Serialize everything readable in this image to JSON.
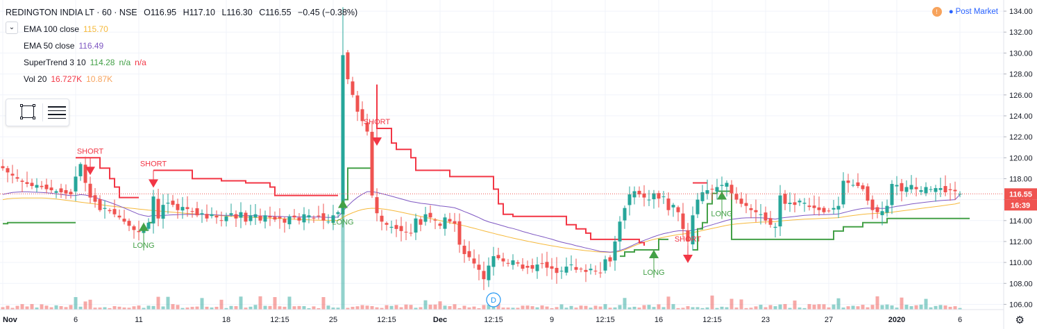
{
  "header": {
    "symbol": "REDINGTON INDIA LT · 60 · NSE",
    "open": "O116.95",
    "high": "H117.10",
    "low": "L116.30",
    "close": "C116.55",
    "change": "−0.45 (−0.38%)"
  },
  "indicators": [
    {
      "label": "EMA 100 close",
      "values": [
        "115.70"
      ],
      "colors": [
        "#f6b93b"
      ]
    },
    {
      "label": "EMA 50 close",
      "values": [
        "116.49"
      ],
      "colors": [
        "#7e57c2"
      ]
    },
    {
      "label": "SuperTrend 3 10",
      "values": [
        "114.28",
        "n/a",
        "n/a"
      ],
      "colors": [
        "#43a047",
        "#43a047",
        "#f23645"
      ]
    },
    {
      "label": "Vol 20",
      "values": [
        "16.727K",
        "10.87K"
      ],
      "colors": [
        "#f23645",
        "#f7a35c"
      ]
    }
  ],
  "status": {
    "icon": "!",
    "label": "Post Market"
  },
  "colors": {
    "up": "#26a69a",
    "down": "#ef5350",
    "st_up": "#43a047",
    "st_down": "#f23645",
    "ema100": "#f6b93b",
    "ema50": "#7e57c2",
    "last_price": "#ef5350"
  },
  "chart_data": {
    "type": "candlestick",
    "y_range": [
      105.5,
      134.8
    ],
    "y_ticks": [
      "134.00",
      "132.00",
      "130.00",
      "128.00",
      "126.00",
      "124.00",
      "122.00",
      "120.00",
      "118.00",
      "116.00",
      "114.00",
      "112.00",
      "110.00",
      "108.00",
      "106.00"
    ],
    "last_price": "116.55",
    "time_to_close": "16:39",
    "x_labels": [
      {
        "i": 0,
        "label": "Nov"
      },
      {
        "i": 15,
        "label": "6"
      },
      {
        "i": 28,
        "label": "11"
      },
      {
        "i": 46,
        "label": "18"
      },
      {
        "i": 57,
        "label": "12:15"
      },
      {
        "i": 68,
        "label": "25"
      },
      {
        "i": 79,
        "label": "12:15"
      },
      {
        "i": 90,
        "label": "Dec"
      },
      {
        "i": 101,
        "label": "12:15"
      },
      {
        "i": 113,
        "label": "9"
      },
      {
        "i": 124,
        "label": "12:15"
      },
      {
        "i": 135,
        "label": "16"
      },
      {
        "i": 146,
        "label": "12:15"
      },
      {
        "i": 157,
        "label": "23"
      },
      {
        "i": 170,
        "label": "27"
      },
      {
        "i": 184,
        "label": "2020"
      },
      {
        "i": 197,
        "label": "6"
      }
    ],
    "closes": [
      119.0,
      118.6,
      118.3,
      118.0,
      117.7,
      117.5,
      117.3,
      117.4,
      117.2,
      117.0,
      116.9,
      116.8,
      116.7,
      116.6,
      116.5,
      118.2,
      119.4,
      117.6,
      116.2,
      115.8,
      115.0,
      115.2,
      114.9,
      114.6,
      114.3,
      113.9,
      113.5,
      113.1,
      112.9,
      113.4,
      113.8,
      116.3,
      114.2,
      115.5,
      115.7,
      115.5,
      115.0,
      115.3,
      115.1,
      114.9,
      114.5,
      114.7,
      114.2,
      114.6,
      114.3,
      114.0,
      114.4,
      114.7,
      114.2,
      114.8,
      113.9,
      114.5,
      114.6,
      114.0,
      114.5,
      114.3,
      114.1,
      114.2,
      113.8,
      114.4,
      114.3,
      114.0,
      114.6,
      114.5,
      114.2,
      114.4,
      114.0,
      113.9,
      114.5,
      114.8,
      129.8,
      127.5,
      126.0,
      124.4,
      123.5,
      122.5,
      116.4,
      114.7,
      113.9,
      113.6,
      113.4,
      113.2,
      113.0,
      112.9,
      112.8,
      114.2,
      113.6,
      114.6,
      114.3,
      114.0,
      113.5,
      114.3,
      113.9,
      113.7,
      111.7,
      110.8,
      110.5,
      109.9,
      109.3,
      108.4,
      109.7,
      110.6,
      110.4,
      110.1,
      109.9,
      110.2,
      109.9,
      109.4,
      109.5,
      109.4,
      109.8,
      109.9,
      109.5,
      109.4,
      109.0,
      109.2,
      109.6,
      109.8,
      109.3,
      109.4,
      109.1,
      109.4,
      109.2,
      109.0,
      110.3,
      110.1,
      112.0,
      113.9,
      115.2,
      116.5,
      116.8,
      116.5,
      116.2,
      116.0,
      116.6,
      116.1,
      116.3,
      115.0,
      115.5,
      114.8,
      113.2,
      112.0,
      114.5,
      116.0,
      116.7,
      116.9,
      117.0,
      117.2,
      117.4,
      117.6,
      116.6,
      116.0,
      115.6,
      115.4,
      115.0,
      114.8,
      114.6,
      114.0,
      113.6,
      113.4,
      116.4,
      115.6,
      115.7,
      115.5,
      115.9,
      115.7,
      115.3,
      115.2,
      115.0,
      114.8,
      114.9,
      115.2,
      115.4,
      117.8,
      117.6,
      117.4,
      117.3,
      117.0,
      115.9,
      115.0,
      114.8,
      114.9,
      115.4,
      117.5,
      117.4,
      116.8,
      117.2,
      117.4,
      117.0,
      116.9,
      117.2,
      117.0,
      117.1,
      117.1,
      116.7,
      116.9,
      116.8,
      116.55
    ],
    "ema100": [
      116.0,
      116.08,
      116.12,
      116.14,
      116.15,
      116.16,
      116.16,
      116.16,
      116.16,
      116.14,
      116.1,
      116.06,
      116.0,
      115.94,
      115.88,
      115.82,
      115.76,
      115.7,
      115.64,
      115.58,
      115.52,
      115.46,
      115.4,
      115.35,
      115.3,
      115.25,
      115.2,
      115.15,
      115.1,
      115.05,
      115.0,
      114.96,
      114.92,
      114.88,
      114.84,
      114.8,
      114.76,
      114.72,
      114.68,
      114.65,
      114.62,
      114.59,
      114.56,
      114.53,
      114.5,
      114.47,
      114.44,
      114.41,
      114.38,
      114.35,
      114.33,
      114.31,
      114.29,
      114.27,
      114.25,
      114.23,
      114.21,
      114.19,
      114.17,
      114.15,
      114.13,
      114.11,
      114.09,
      114.07,
      114.05,
      114.04,
      114.03,
      114.02,
      114.01,
      114.0,
      114.3,
      114.55,
      114.75,
      114.92,
      115.05,
      115.14,
      115.18,
      115.16,
      115.12,
      115.06,
      114.98,
      114.9,
      114.8,
      114.7,
      114.6,
      114.5,
      114.4,
      114.3,
      114.2,
      114.1,
      114.0,
      113.9,
      113.8,
      113.7,
      113.6,
      113.5,
      113.38,
      113.26,
      113.14,
      113.02,
      112.9,
      112.78,
      112.66,
      112.55,
      112.44,
      112.33,
      112.23,
      112.13,
      112.03,
      111.94,
      111.85,
      111.76,
      111.67,
      111.59,
      111.51,
      111.43,
      111.36,
      111.3,
      111.24,
      111.18,
      111.13,
      111.08,
      111.03,
      111.0,
      110.98,
      110.97,
      110.98,
      111.05,
      111.2,
      111.4,
      111.6,
      111.78,
      111.94,
      112.08,
      112.2,
      112.3,
      112.4,
      112.5,
      112.58,
      112.66,
      112.72,
      112.78,
      112.85,
      112.95,
      113.05,
      113.15,
      113.25,
      113.35,
      113.45,
      113.55,
      113.62,
      113.68,
      113.72,
      113.76,
      113.79,
      113.82,
      113.85,
      113.87,
      113.88,
      113.89,
      113.95,
      114.0,
      114.04,
      114.07,
      114.1,
      114.13,
      114.15,
      114.17,
      114.19,
      114.21,
      114.23,
      114.25,
      114.28,
      114.35,
      114.42,
      114.48,
      114.54,
      114.6,
      114.64,
      114.67,
      114.69,
      114.71,
      114.74,
      114.8,
      114.86,
      114.92,
      114.98,
      115.04,
      115.1,
      115.16,
      115.22,
      115.28,
      115.34,
      115.4,
      115.46,
      115.52,
      115.58,
      115.7
    ],
    "ema50": [
      116.5,
      116.6,
      116.68,
      116.72,
      116.74,
      116.74,
      116.72,
      116.7,
      116.68,
      116.65,
      116.61,
      116.56,
      116.5,
      116.44,
      116.38,
      116.4,
      116.48,
      116.44,
      116.34,
      116.22,
      116.05,
      115.9,
      115.74,
      115.57,
      115.39,
      115.2,
      115.0,
      114.8,
      114.6,
      114.48,
      114.4,
      114.5,
      114.44,
      114.48,
      114.52,
      114.55,
      114.56,
      114.58,
      114.59,
      114.6,
      114.59,
      114.59,
      114.57,
      114.56,
      114.54,
      114.51,
      114.5,
      114.5,
      114.48,
      114.49,
      114.46,
      114.46,
      114.46,
      114.44,
      114.44,
      114.43,
      114.41,
      114.4,
      114.37,
      114.37,
      114.36,
      114.34,
      114.35,
      114.35,
      114.34,
      114.34,
      114.32,
      114.3,
      114.31,
      114.33,
      114.9,
      115.4,
      115.85,
      116.22,
      116.52,
      116.76,
      116.76,
      116.68,
      116.57,
      116.45,
      116.33,
      116.2,
      116.07,
      115.94,
      115.81,
      115.74,
      115.65,
      115.6,
      115.54,
      115.48,
      115.4,
      115.35,
      115.29,
      115.22,
      115.05,
      114.86,
      114.68,
      114.48,
      114.28,
      114.05,
      113.88,
      113.75,
      113.62,
      113.49,
      113.35,
      113.24,
      113.11,
      112.96,
      112.83,
      112.7,
      112.58,
      112.47,
      112.34,
      112.22,
      112.07,
      111.94,
      111.83,
      111.73,
      111.6,
      111.5,
      111.38,
      111.28,
      111.17,
      111.05,
      111.03,
      110.99,
      111.03,
      111.14,
      111.3,
      111.5,
      111.72,
      111.93,
      112.11,
      112.28,
      112.46,
      112.61,
      112.75,
      112.84,
      112.95,
      113.02,
      113.04,
      113.0,
      113.07,
      113.18,
      113.33,
      113.47,
      113.6,
      113.74,
      113.88,
      114.02,
      114.12,
      114.18,
      114.23,
      114.26,
      114.27,
      114.27,
      114.27,
      114.24,
      114.19,
      114.14,
      114.23,
      114.29,
      114.34,
      114.39,
      114.45,
      114.5,
      114.52,
      114.55,
      114.56,
      114.57,
      114.58,
      114.6,
      114.63,
      114.75,
      114.87,
      114.98,
      115.08,
      115.15,
      115.19,
      115.18,
      115.17,
      115.16,
      115.17,
      115.27,
      115.36,
      115.42,
      115.5,
      115.58,
      115.64,
      115.7,
      115.76,
      115.81,
      115.86,
      115.91,
      115.94,
      115.97,
      116.0,
      116.49
    ],
    "supertrend_up": [
      [
        0,
        113.7
      ],
      [
        1,
        113.8
      ],
      [
        2,
        113.8
      ],
      [
        15,
        113.8
      ],
      [
        16,
        null
      ],
      [
        29,
        null
      ],
      [
        30,
        113.8
      ],
      [
        31,
        114.6
      ],
      [
        32,
        null
      ],
      [
        69,
        null
      ],
      [
        70,
        116.0
      ],
      [
        71,
        119.0
      ],
      [
        76,
        119.0
      ],
      [
        77,
        null
      ],
      [
        126,
        null
      ],
      [
        127,
        110.6
      ],
      [
        128,
        111.0
      ],
      [
        130,
        111.2
      ],
      [
        134,
        111.2
      ],
      [
        135,
        112.2
      ],
      [
        137,
        112.2
      ],
      [
        138,
        null
      ],
      [
        141,
        null
      ],
      [
        142,
        111.2
      ],
      [
        143,
        113.2
      ],
      [
        144,
        113.8
      ],
      [
        145,
        115.6
      ],
      [
        146,
        116.6
      ],
      [
        147,
        116.8
      ],
      [
        149,
        116.8
      ],
      [
        150,
        112.2
      ],
      [
        170,
        112.2
      ],
      [
        171,
        113.0
      ],
      [
        172,
        113.0
      ],
      [
        173,
        113.4
      ],
      [
        176,
        113.4
      ],
      [
        177,
        113.8
      ],
      [
        181,
        113.8
      ],
      [
        182,
        114.2
      ],
      [
        199,
        114.2
      ]
    ],
    "supertrend_down": [
      [
        15,
        120.0
      ],
      [
        19,
        120.0
      ],
      [
        20,
        119.0
      ],
      [
        22,
        118.0
      ],
      [
        23,
        117.2
      ],
      [
        24,
        116.2
      ],
      [
        28,
        116.2
      ],
      [
        29,
        null
      ],
      [
        30,
        null
      ],
      [
        31,
        118.8
      ],
      [
        38,
        118.8
      ],
      [
        39,
        118.0
      ],
      [
        44,
        118.0
      ],
      [
        45,
        117.8
      ],
      [
        49,
        117.8
      ],
      [
        50,
        117.6
      ],
      [
        54,
        117.6
      ],
      [
        55,
        117.2
      ],
      [
        56,
        116.4
      ],
      [
        69,
        116.4
      ],
      [
        70,
        null
      ],
      [
        76,
        null
      ],
      [
        77,
        127.0
      ],
      [
        77,
        122.8
      ],
      [
        79,
        122.8
      ],
      [
        80,
        121.4
      ],
      [
        81,
        120.8
      ],
      [
        84,
        120.0
      ],
      [
        85,
        118.8
      ],
      [
        91,
        118.8
      ],
      [
        92,
        118.2
      ],
      [
        100,
        118.2
      ],
      [
        101,
        117.0
      ],
      [
        102,
        115.6
      ],
      [
        103,
        114.6
      ],
      [
        105,
        114.4
      ],
      [
        115,
        114.4
      ],
      [
        116,
        113.6
      ],
      [
        118,
        113.2
      ],
      [
        120,
        112.8
      ],
      [
        121,
        112.2
      ],
      [
        130,
        112.2
      ],
      [
        131,
        111.9
      ],
      [
        132,
        111.6
      ],
      [
        133,
        null
      ],
      [
        141,
        null
      ],
      [
        142,
        117.6
      ],
      [
        145,
        117.6
      ],
      [
        146,
        null
      ]
    ],
    "signals": [
      {
        "i": 18,
        "type": "SHORT",
        "text": "SHORT"
      },
      {
        "i": 31,
        "type": "SHORT",
        "text": "SHORT"
      },
      {
        "i": 29,
        "type": "LONG",
        "text": "LONG"
      },
      {
        "i": 70,
        "type": "LONG",
        "text": "LONG"
      },
      {
        "i": 77,
        "type": "SHORT",
        "text": "SHORT"
      },
      {
        "i": 134,
        "type": "LONG",
        "text": "LONG"
      },
      {
        "i": 141,
        "type": "SHORT",
        "text": "SHORT"
      },
      {
        "i": 148,
        "type": "LONG",
        "text": "LONG"
      }
    ],
    "dividend_marker": {
      "i": 101,
      "text": "D"
    }
  }
}
